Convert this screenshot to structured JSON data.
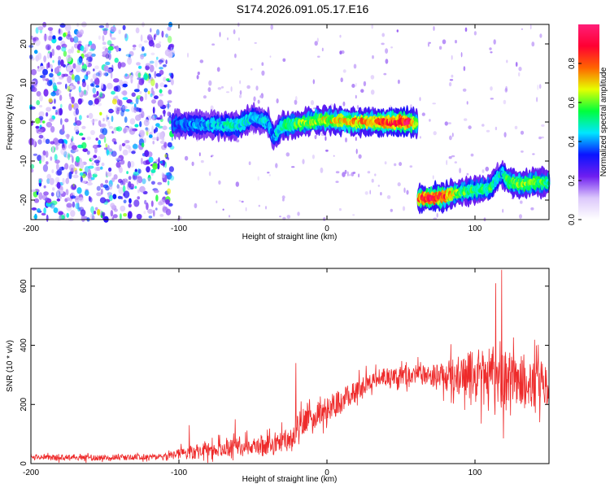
{
  "title": "S174.2026.091.05.17.E16",
  "chart_data": [
    {
      "type": "heatmap",
      "xlabel": "Height of straight line (km)",
      "ylabel": "Frequency (Hz)",
      "xlim": [
        -200,
        150
      ],
      "ylim": [
        -25,
        25
      ],
      "xticks": [
        -200,
        -100,
        0,
        100
      ],
      "yticks": [
        -20,
        -10,
        0,
        10,
        20
      ],
      "xtick_labels": [
        "-200",
        "-100",
        "0",
        "100"
      ],
      "ytick_labels": [
        "-20",
        "-10",
        "0",
        "10",
        "20"
      ],
      "colorbar": {
        "label": "Normalized spectral amplitude",
        "range": [
          0,
          1
        ],
        "ticks": [
          0.0,
          0.2,
          0.4,
          0.6,
          0.8
        ],
        "tick_labels": [
          "0.0",
          "0.2",
          "0.4",
          "0.6",
          "0.8"
        ],
        "colors": [
          "#ffffff",
          "#dcc8fb",
          "#6e1ef0",
          "#0a14ff",
          "#00e6ff",
          "#00ff3c",
          "#e6ff00",
          "#ff6400",
          "#ff0032",
          "#ff1e78"
        ]
      },
      "ridges": [
        {
          "x": [
            -104,
            -80,
            -60,
            -50,
            -40,
            -36,
            -30,
            -20,
            -10,
            0,
            20,
            40,
            55,
            61
          ],
          "y": [
            -0.5,
            -0.8,
            -1,
            1,
            0,
            -4,
            -1,
            -0.5,
            0.2,
            0.5,
            0,
            0,
            0,
            -0.5
          ],
          "peak": [
            0.35,
            0.45,
            0.5,
            0.45,
            0.45,
            0.4,
            0.55,
            0.6,
            0.65,
            0.7,
            0.75,
            0.85,
            0.95,
            0.6
          ]
        },
        {
          "x": [
            62,
            70,
            80,
            90,
            100,
            110,
            118,
            122,
            130,
            140,
            150
          ],
          "y": [
            -19.5,
            -19.5,
            -19,
            -18,
            -17.5,
            -17,
            -13,
            -15,
            -16,
            -15.5,
            -15.5
          ],
          "peak": [
            0.85,
            0.95,
            0.85,
            0.6,
            0.55,
            0.55,
            0.45,
            0.6,
            0.65,
            0.6,
            0.55
          ]
        }
      ],
      "noise_region": {
        "x": [
          -200,
          -104
        ],
        "level": 0.3
      }
    },
    {
      "type": "line",
      "xlabel": "Height of straight line (km)",
      "ylabel": "SNR (10 * v/v)",
      "xlim": [
        -200,
        150
      ],
      "ylim": [
        0,
        660
      ],
      "xticks": [
        -200,
        -100,
        0,
        100
      ],
      "yticks": [
        0,
        200,
        400,
        600
      ],
      "xtick_labels": [
        "-200",
        "-100",
        "0",
        "100"
      ],
      "ytick_labels": [
        "0",
        "200",
        "400",
        "600"
      ],
      "color": "#ee2a2a",
      "baseline": {
        "x": [
          -200,
          -150,
          -110,
          -90,
          -60,
          -40,
          -22,
          -20,
          -10,
          0,
          10,
          20,
          30,
          40,
          60,
          80,
          100,
          120,
          140,
          150
        ],
        "y": [
          20,
          20,
          25,
          40,
          55,
          60,
          80,
          130,
          160,
          185,
          210,
          250,
          280,
          295,
          300,
          300,
          295,
          285,
          275,
          270
        ]
      },
      "noise_amplitude": {
        "x": [
          -200,
          -110,
          -90,
          -40,
          -20,
          0,
          40,
          70,
          100,
          115,
          130,
          150
        ],
        "y": [
          10,
          10,
          25,
          35,
          45,
          45,
          30,
          35,
          90,
          120,
          95,
          75
        ]
      },
      "spikes": [
        {
          "x": -93,
          "y": 130
        },
        {
          "x": -62,
          "y": 150
        },
        {
          "x": -21,
          "y": 340
        },
        {
          "x": 114,
          "y": 610
        },
        {
          "x": 118,
          "y": 655
        }
      ]
    }
  ]
}
